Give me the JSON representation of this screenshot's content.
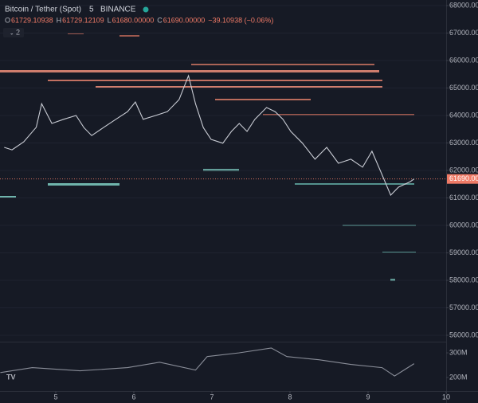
{
  "chart_data": [
    {
      "type": "line",
      "title": "Bitcoin / Tether (Spot)",
      "interval": "5",
      "exchange": "BINANCE",
      "ohlc": [
        {
          "label": "O",
          "value": "61729.10938"
        },
        {
          "label": "H",
          "value": "61729.12109"
        },
        {
          "label": "L",
          "value": "61680.00000"
        },
        {
          "label": "C",
          "value": "61690.00000"
        }
      ],
      "change": "−39.10938 (−0.06%)",
      "indicators": "2",
      "last_price": {
        "value": 61690,
        "label": "61690.00"
      },
      "xlim": [
        4.286,
        10
      ],
      "ylim": [
        55797,
        68203
      ],
      "yticks": [
        {
          "value": 68000,
          "label": "68000.00"
        },
        {
          "value": 67000,
          "label": "67000.00"
        },
        {
          "value": 66000,
          "label": "66000.00"
        },
        {
          "value": 65000,
          "label": "65000.00"
        },
        {
          "value": 64000,
          "label": "64000.00"
        },
        {
          "value": 63000,
          "label": "63000.00"
        },
        {
          "value": 62000,
          "label": "62000.00"
        },
        {
          "value": 61000,
          "label": "61000.00"
        },
        {
          "value": 60000,
          "label": "60000.00"
        },
        {
          "value": 59000,
          "label": "59000.00"
        },
        {
          "value": 58000,
          "label": "58000.00"
        },
        {
          "value": 57000,
          "label": "57000.00"
        },
        {
          "value": 56000,
          "label": "56000.00"
        }
      ],
      "grid": true,
      "x": [
        4.34,
        4.44,
        4.59,
        4.75,
        4.82,
        4.95,
        5.1,
        5.26,
        5.36,
        5.46,
        5.61,
        5.77,
        5.92,
        6.02,
        6.12,
        6.28,
        6.43,
        6.58,
        6.7,
        6.79,
        6.89,
        6.99,
        7.14,
        7.25,
        7.35,
        7.45,
        7.55,
        7.7,
        7.81,
        7.91,
        8.01,
        8.16,
        8.32,
        8.47,
        8.62,
        8.78,
        8.93,
        9.05,
        9.16,
        9.29,
        9.39,
        9.54,
        9.59
      ],
      "series": [
        {
          "color": "#c9ccd4",
          "values": [
            62840,
            62750,
            63040,
            63570,
            64430,
            63710,
            63860,
            64000,
            63560,
            63270,
            63560,
            63860,
            64140,
            64490,
            63860,
            64000,
            64140,
            64580,
            65450,
            64430,
            63560,
            63130,
            62990,
            63420,
            63710,
            63420,
            63860,
            64290,
            64140,
            63860,
            63420,
            62990,
            62410,
            62840,
            62260,
            62410,
            62120,
            62700,
            61970,
            61100,
            61390,
            61590,
            61690
          ]
        }
      ]
    },
    {
      "type": "line",
      "xlim": [
        4.286,
        10
      ],
      "xticks": [
        5,
        6,
        7,
        8,
        9,
        10
      ],
      "ylim": [
        148000000,
        339000000
      ],
      "yticks": [
        {
          "value": 300000000,
          "label": "300M"
        },
        {
          "value": 200000000,
          "label": "200M"
        }
      ],
      "x": [
        4.29,
        4.7,
        5.31,
        5.92,
        6.33,
        6.79,
        6.94,
        7.35,
        7.76,
        7.96,
        8.37,
        8.78,
        9.18,
        9.34,
        9.59
      ],
      "series": [
        {
          "color": "#8a8e99",
          "values": [
            220000000,
            240000000,
            227000000,
            240000000,
            262000000,
            230000000,
            285000000,
            300000000,
            320000000,
            285000000,
            272000000,
            253000000,
            240000000,
            206000000,
            256000000
          ]
        }
      ]
    }
  ]
}
